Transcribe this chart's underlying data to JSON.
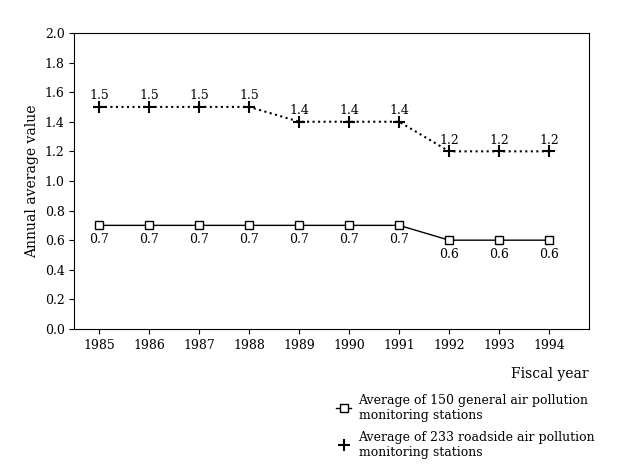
{
  "years": [
    1985,
    1986,
    1987,
    1988,
    1989,
    1990,
    1991,
    1992,
    1993,
    1994
  ],
  "general_stations": [
    0.7,
    0.7,
    0.7,
    0.7,
    0.7,
    0.7,
    0.7,
    0.6,
    0.6,
    0.6
  ],
  "roadside_stations": [
    1.5,
    1.5,
    1.5,
    1.5,
    1.4,
    1.4,
    1.4,
    1.2,
    1.2,
    1.2
  ],
  "general_labels": [
    "0.7",
    "0.7",
    "0.7",
    "0.7",
    "0.7",
    "0.7",
    "0.7",
    "0.6",
    "0.6",
    "0.6"
  ],
  "roadside_labels": [
    "1.5",
    "1.5",
    "1.5",
    "1.5",
    "1.4",
    "1.4",
    "1.4",
    "1.2",
    "1.2",
    "1.2"
  ],
  "ylabel": "Annual average value",
  "xlabel": "Fiscal year",
  "ylim": [
    0.0,
    2.0
  ],
  "yticks": [
    0.0,
    0.2,
    0.4,
    0.6,
    0.8,
    1.0,
    1.2,
    1.4,
    1.6,
    1.8,
    2.0
  ],
  "line_color_general": "#000000",
  "line_color_roadside": "#000000",
  "bg_color": "#ffffff",
  "legend_general": "Average of 150 general air pollution\nmonitoring stations",
  "legend_roadside": "Average of 233 roadside air pollution\nmonitoring stations",
  "label_fontsize": 9,
  "tick_fontsize": 9,
  "axis_fontsize": 10
}
